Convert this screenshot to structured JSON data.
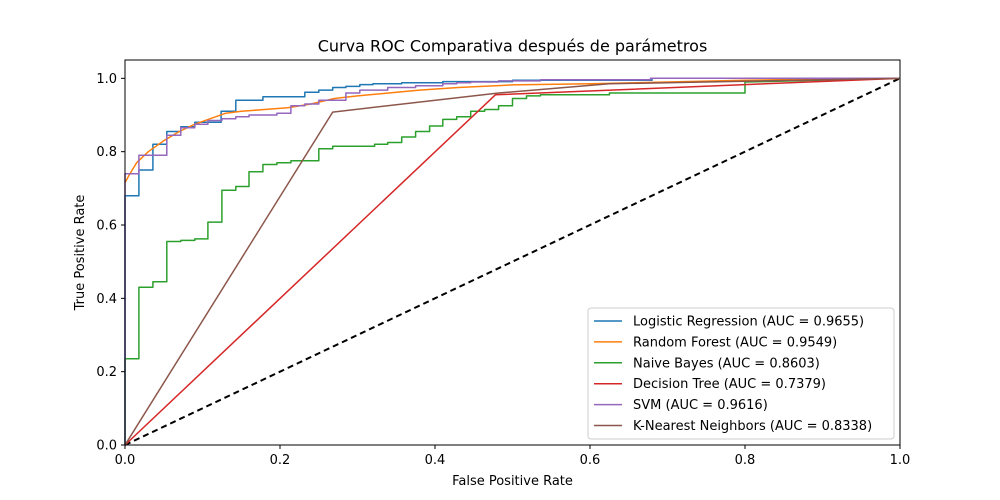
{
  "chart_data": {
    "type": "line",
    "title": "Curva ROC Comparativa después de parámetros",
    "xlabel": "False Positive Rate",
    "ylabel": "True Positive Rate",
    "xlim": [
      0,
      1
    ],
    "ylim": [
      0,
      1.05
    ],
    "x_ticks": [
      "0.0",
      "0.2",
      "0.4",
      "0.6",
      "0.8",
      "1.0"
    ],
    "y_ticks": [
      "0.0",
      "0.2",
      "0.4",
      "0.6",
      "0.8",
      "1.0"
    ],
    "grid": false,
    "legend_position": "lower-right",
    "series": [
      {
        "name": "Logistic Regression (AUC = 0.9655)",
        "color": "#1f77b4",
        "x": [
          0,
          0,
          0.018,
          0.018,
          0.036,
          0.036,
          0.054,
          0.054,
          0.072,
          0.072,
          0.09,
          0.09,
          0.124,
          0.124,
          0.143,
          0.143,
          0.178,
          0.178,
          0.232,
          0.232,
          0.25,
          0.25,
          0.268,
          0.268,
          0.285,
          0.285,
          0.303,
          0.303,
          0.32,
          0.32,
          0.357,
          0.357,
          0.41,
          0.41,
          0.5,
          0.5,
          0.68,
          0.68,
          1.0
        ],
        "y": [
          0,
          0.68,
          0.68,
          0.75,
          0.75,
          0.82,
          0.82,
          0.855,
          0.855,
          0.868,
          0.868,
          0.88,
          0.88,
          0.91,
          0.91,
          0.94,
          0.94,
          0.95,
          0.95,
          0.962,
          0.962,
          0.968,
          0.968,
          0.975,
          0.975,
          0.978,
          0.978,
          0.983,
          0.983,
          0.985,
          0.985,
          0.988,
          0.988,
          0.991,
          0.991,
          0.995,
          0.995,
          1.0,
          1.0
        ]
      },
      {
        "name": "Random Forest (AUC = 0.9549)",
        "color": "#ff7f0e",
        "x": [
          0,
          0.005,
          0.015,
          0.03,
          0.05,
          0.07,
          0.09,
          0.11,
          0.13,
          0.15,
          0.18,
          0.21,
          0.24,
          0.27,
          0.3,
          0.34,
          0.38,
          0.43,
          0.5,
          0.6,
          0.7,
          0.8,
          0.9,
          1.0
        ],
        "y": [
          0.715,
          0.735,
          0.77,
          0.8,
          0.83,
          0.855,
          0.875,
          0.89,
          0.905,
          0.91,
          0.915,
          0.92,
          0.93,
          0.945,
          0.952,
          0.96,
          0.968,
          0.975,
          0.982,
          0.985,
          0.99,
          0.995,
          0.998,
          1.0
        ]
      },
      {
        "name": "Naive Bayes (AUC = 0.8603)",
        "color": "#2ca02c",
        "x": [
          0,
          0,
          0.018,
          0.018,
          0.036,
          0.036,
          0.054,
          0.054,
          0.072,
          0.072,
          0.09,
          0.09,
          0.107,
          0.107,
          0.125,
          0.125,
          0.143,
          0.143,
          0.16,
          0.16,
          0.178,
          0.178,
          0.196,
          0.196,
          0.214,
          0.214,
          0.25,
          0.25,
          0.268,
          0.268,
          0.322,
          0.322,
          0.339,
          0.339,
          0.357,
          0.357,
          0.375,
          0.375,
          0.393,
          0.393,
          0.41,
          0.41,
          0.428,
          0.428,
          0.446,
          0.446,
          0.464,
          0.464,
          0.482,
          0.482,
          0.5,
          0.5,
          0.518,
          0.518,
          0.536,
          0.536,
          0.625,
          0.625,
          0.8,
          0.8,
          1.0
        ],
        "y": [
          0,
          0.235,
          0.235,
          0.43,
          0.43,
          0.445,
          0.445,
          0.555,
          0.555,
          0.558,
          0.558,
          0.562,
          0.562,
          0.608,
          0.608,
          0.695,
          0.695,
          0.705,
          0.705,
          0.745,
          0.745,
          0.765,
          0.765,
          0.77,
          0.77,
          0.775,
          0.775,
          0.808,
          0.808,
          0.815,
          0.815,
          0.82,
          0.82,
          0.825,
          0.825,
          0.84,
          0.84,
          0.855,
          0.855,
          0.87,
          0.87,
          0.888,
          0.888,
          0.895,
          0.895,
          0.91,
          0.91,
          0.915,
          0.915,
          0.925,
          0.925,
          0.945,
          0.945,
          0.952,
          0.952,
          0.955,
          0.955,
          0.96,
          0.96,
          0.99,
          1.0
        ]
      },
      {
        "name": "Decision Tree (AUC = 0.7379)",
        "color": "#d62728",
        "x": [
          0,
          0.478,
          1.0
        ],
        "y": [
          0,
          0.955,
          1.0
        ]
      },
      {
        "name": "SVM (AUC = 0.9616)",
        "color": "#9467bd",
        "x": [
          0,
          0,
          0.018,
          0.018,
          0.054,
          0.054,
          0.072,
          0.072,
          0.09,
          0.09,
          0.107,
          0.107,
          0.125,
          0.125,
          0.143,
          0.143,
          0.16,
          0.16,
          0.196,
          0.196,
          0.214,
          0.214,
          0.232,
          0.232,
          0.25,
          0.25,
          0.285,
          0.285,
          0.303,
          0.303,
          0.339,
          0.339,
          0.375,
          0.375,
          0.41,
          0.41,
          0.428,
          0.428,
          0.446,
          0.446,
          0.482,
          0.482,
          0.536,
          0.536,
          0.678,
          0.678,
          1.0
        ],
        "y": [
          0,
          0.74,
          0.74,
          0.79,
          0.79,
          0.845,
          0.845,
          0.865,
          0.865,
          0.875,
          0.875,
          0.885,
          0.885,
          0.89,
          0.89,
          0.895,
          0.895,
          0.9,
          0.9,
          0.905,
          0.905,
          0.925,
          0.925,
          0.93,
          0.93,
          0.94,
          0.94,
          0.96,
          0.96,
          0.968,
          0.968,
          0.975,
          0.975,
          0.98,
          0.98,
          0.985,
          0.985,
          0.988,
          0.988,
          0.99,
          0.99,
          0.993,
          0.993,
          0.996,
          0.996,
          1.0,
          1.0
        ]
      },
      {
        "name": "K-Nearest Neighbors (AUC = 0.8338)",
        "color": "#8c564b",
        "x": [
          0,
          0.268,
          0.482,
          0.625,
          1.0
        ],
        "y": [
          0,
          0.908,
          0.96,
          0.985,
          1.0
        ]
      },
      {
        "name": "",
        "color": "#000000",
        "dashed": true,
        "x": [
          0,
          1
        ],
        "y": [
          0,
          1
        ]
      }
    ]
  }
}
